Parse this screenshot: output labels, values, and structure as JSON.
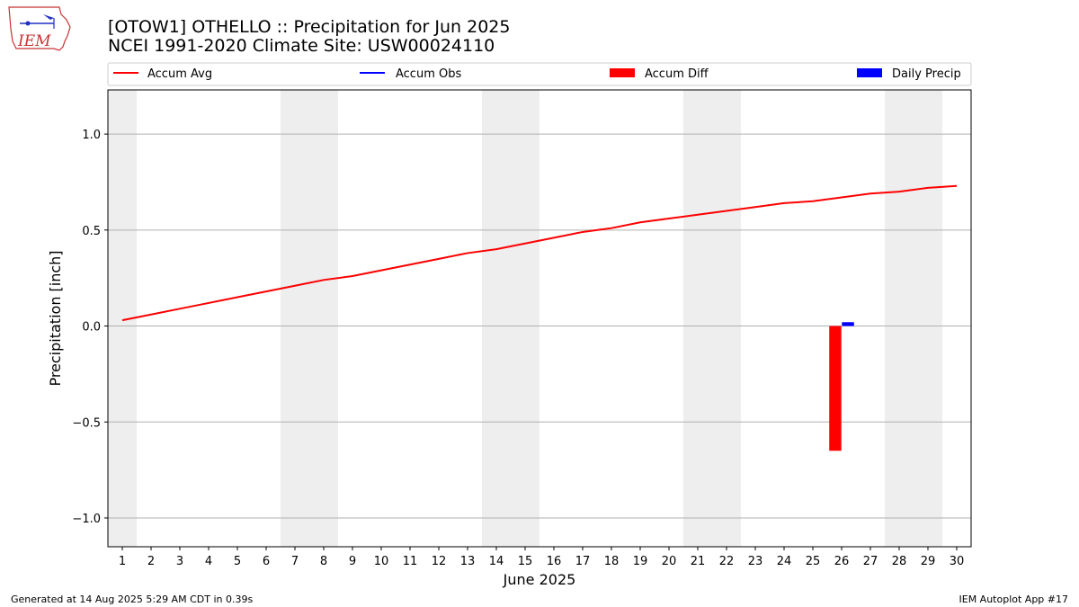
{
  "header": {
    "title_line1": "[OTOW1] OTHELLO :: Precipitation for Jun 2025",
    "title_line2": "NCEI 1991-2020 Climate Site: USW00024110"
  },
  "logo": {
    "text": "IEM"
  },
  "footer": {
    "generated": "Generated at 14 Aug 2025 5:29 AM CDT in 0.39s",
    "app": "IEM Autoplot App #17"
  },
  "colors": {
    "accum_avg": "#ff0000",
    "accum_obs": "#0000ff",
    "accum_diff": "#ff0000",
    "daily_precip": "#0000ff",
    "weekend_shade": "#eeeeee",
    "grid": "#b0b0b0"
  },
  "chart_data": {
    "type": "line",
    "xlabel": "June 2025",
    "ylabel": "Precipitation [inch]",
    "xlim": [
      0.5,
      30.5
    ],
    "ylim": [
      -1.15,
      1.23
    ],
    "x_ticks": [
      1,
      2,
      3,
      4,
      5,
      6,
      7,
      8,
      9,
      10,
      11,
      12,
      13,
      14,
      15,
      16,
      17,
      18,
      19,
      20,
      21,
      22,
      23,
      24,
      25,
      26,
      27,
      28,
      29,
      30
    ],
    "y_ticks": [
      1.0,
      0.5,
      0.0,
      -0.5,
      -1.0
    ],
    "y_tick_labels": [
      "1.0",
      "0.5",
      "0.0",
      "−0.5",
      "−1.0"
    ],
    "grid": "horizontal",
    "legend_position": "top",
    "legend": [
      {
        "label": "Accum Avg",
        "kind": "line",
        "color": "#ff0000"
      },
      {
        "label": "Accum Obs",
        "kind": "line",
        "color": "#0000ff"
      },
      {
        "label": "Accum Diff",
        "kind": "bar",
        "color": "#ff0000"
      },
      {
        "label": "Daily Precip",
        "kind": "bar",
        "color": "#0000ff"
      }
    ],
    "weekend_days": [
      1,
      7,
      8,
      14,
      15,
      21,
      22,
      28,
      29
    ],
    "series": [
      {
        "name": "Accum Avg",
        "kind": "line",
        "x": [
          1,
          2,
          3,
          4,
          5,
          6,
          7,
          8,
          9,
          10,
          11,
          12,
          13,
          14,
          15,
          16,
          17,
          18,
          19,
          20,
          21,
          22,
          23,
          24,
          25,
          26,
          27,
          28,
          29,
          30
        ],
        "values": [
          0.03,
          0.06,
          0.09,
          0.12,
          0.15,
          0.18,
          0.21,
          0.24,
          0.26,
          0.29,
          0.32,
          0.35,
          0.38,
          0.4,
          0.43,
          0.46,
          0.49,
          0.51,
          0.54,
          0.56,
          0.58,
          0.6,
          0.62,
          0.64,
          0.65,
          0.67,
          0.69,
          0.7,
          0.72,
          0.73
        ]
      },
      {
        "name": "Accum Diff",
        "kind": "bar",
        "x": [
          26
        ],
        "values": [
          -0.65
        ]
      },
      {
        "name": "Daily Precip",
        "kind": "bar",
        "x": [
          26
        ],
        "values": [
          0.02
        ]
      }
    ]
  }
}
